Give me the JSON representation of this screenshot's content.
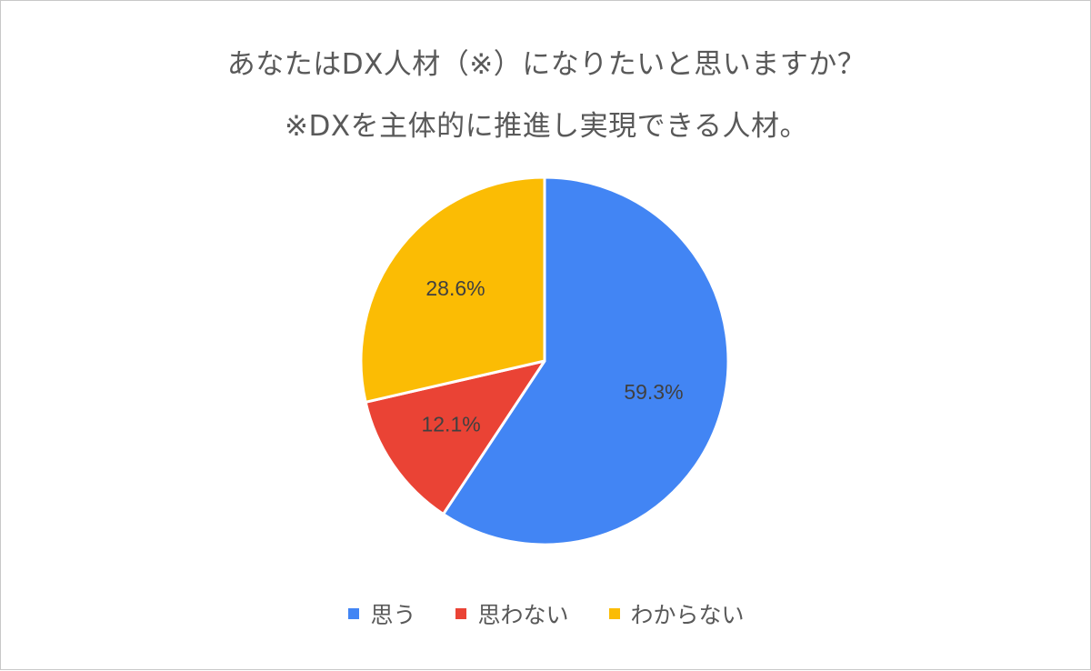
{
  "chart_data": {
    "type": "pie",
    "title": "あなたはDX人材（※）になりたいと思いますか？",
    "subtitle": "※DXを主体的に推進し実現できる人材。",
    "legend_position": "bottom",
    "slices": [
      {
        "name": "思う",
        "value": 59.3,
        "label": "59.3%",
        "color": "#4285F4"
      },
      {
        "name": "思わない",
        "value": 12.1,
        "label": "12.1%",
        "color": "#EA4335"
      },
      {
        "name": "わからない",
        "value": 28.6,
        "label": "28.6%",
        "color": "#FBBC04"
      }
    ]
  }
}
